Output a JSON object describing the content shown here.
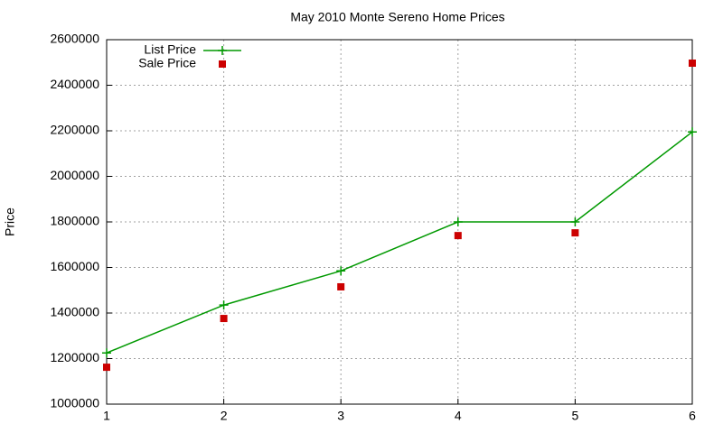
{
  "chart_data": {
    "type": "line",
    "title": "May 2010 Monte Sereno Home Prices",
    "y_label": "Price",
    "x": [
      1,
      2,
      3,
      4,
      5,
      6
    ],
    "series": [
      {
        "name": "List Price",
        "color": "#009900",
        "style": "linespoints",
        "values": [
          1225000,
          1435000,
          1585000,
          1800000,
          1800000,
          2195000
        ]
      },
      {
        "name": "Sale Price",
        "color": "#cc0000",
        "style": "points",
        "values": [
          1162000,
          1376000,
          1515000,
          1740000,
          1752000,
          2497000
        ]
      }
    ],
    "xlim": [
      1,
      6
    ],
    "xticks": [
      1,
      2,
      3,
      4,
      5,
      6
    ],
    "ylim": [
      1000000,
      2600000
    ],
    "yticks": [
      1000000,
      1200000,
      1400000,
      1600000,
      1800000,
      2000000,
      2200000,
      2400000,
      2600000
    ],
    "grid": true,
    "legend": "top-left"
  }
}
